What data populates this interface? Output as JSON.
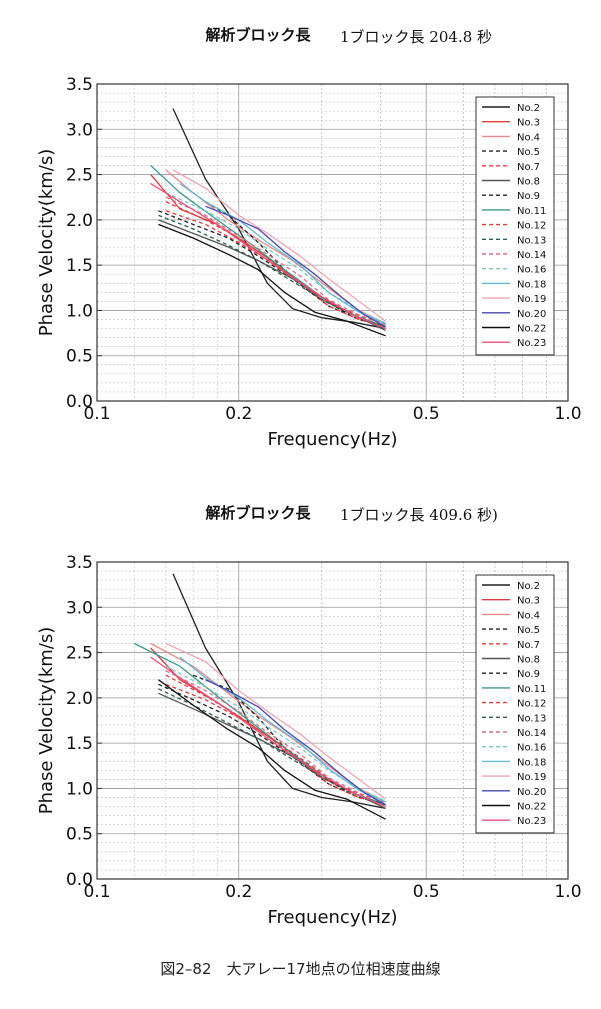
{
  "caption": "図2–82　大アレー17地点の位相速度曲線",
  "chart_data": [
    {
      "type": "line",
      "title": "解析ブロック長",
      "subtitle": "1ブロック長 204.8 秒",
      "xlabel": "Frequency(Hz)",
      "ylabel": "Phase Velocity(km/s)",
      "xscale": "log",
      "xlim": [
        0.1,
        1.0
      ],
      "ylim": [
        0.0,
        3.5
      ],
      "xticks": [
        "0.1",
        "0.2",
        "0.5",
        "1.0"
      ],
      "yticks": [
        "0.0",
        "0.5",
        "1.0",
        "1.5",
        "2.0",
        "2.5",
        "3.0",
        "3.5"
      ],
      "grid": true,
      "legend_position": "top-right",
      "series": [
        {
          "name": "No.2",
          "color": "#222222",
          "dash": "solid",
          "x": [
            0.145,
            0.17,
            0.2,
            0.23,
            0.26,
            0.3,
            0.35,
            0.41
          ],
          "y": [
            3.23,
            2.45,
            1.9,
            1.3,
            1.02,
            0.92,
            0.87,
            0.8
          ]
        },
        {
          "name": "No.3",
          "color": "#e33b3b",
          "dash": "solid",
          "x": [
            0.13,
            0.15,
            0.18,
            0.21,
            0.25,
            0.3,
            0.36,
            0.41
          ],
          "y": [
            2.5,
            2.12,
            1.95,
            1.72,
            1.45,
            1.12,
            0.92,
            0.82
          ]
        },
        {
          "name": "No.4",
          "color": "#ee8a8a",
          "dash": "solid",
          "x": [
            0.14,
            0.16,
            0.19,
            0.22,
            0.26,
            0.31,
            0.36,
            0.41
          ],
          "y": [
            2.55,
            2.3,
            2.0,
            1.78,
            1.55,
            1.25,
            1.0,
            0.85
          ]
        },
        {
          "name": "No.5",
          "color": "#222222",
          "dash": "dashed",
          "x": [
            0.135,
            0.16,
            0.19,
            0.22,
            0.26,
            0.31,
            0.36,
            0.41
          ],
          "y": [
            2.1,
            1.95,
            1.8,
            1.6,
            1.35,
            1.05,
            0.9,
            0.82
          ]
        },
        {
          "name": "No.7",
          "color": "#e33b3b",
          "dash": "dashed",
          "x": [
            0.14,
            0.17,
            0.2,
            0.23,
            0.27,
            0.31,
            0.36,
            0.41
          ],
          "y": [
            2.2,
            2.0,
            1.8,
            1.58,
            1.3,
            1.05,
            0.9,
            0.82
          ]
        },
        {
          "name": "No.8",
          "color": "#555555",
          "dash": "solid",
          "x": [
            0.135,
            0.16,
            0.19,
            0.22,
            0.26,
            0.31,
            0.36,
            0.41
          ],
          "y": [
            2.0,
            1.85,
            1.7,
            1.55,
            1.35,
            1.1,
            0.92,
            0.78
          ]
        },
        {
          "name": "No.9",
          "color": "#222222",
          "dash": "dashed",
          "x": [
            0.17,
            0.19,
            0.22,
            0.25,
            0.29,
            0.33,
            0.37,
            0.41
          ],
          "y": [
            2.2,
            2.05,
            1.75,
            1.45,
            1.2,
            1.0,
            0.9,
            0.82
          ]
        },
        {
          "name": "No.11",
          "color": "#3a9a8c",
          "dash": "solid",
          "x": [
            0.13,
            0.15,
            0.18,
            0.21,
            0.25,
            0.3,
            0.35,
            0.41
          ],
          "y": [
            2.6,
            2.3,
            2.0,
            1.75,
            1.45,
            1.15,
            0.95,
            0.82
          ]
        },
        {
          "name": "No.12",
          "color": "#e33b3b",
          "dash": "dashed",
          "x": [
            0.14,
            0.17,
            0.2,
            0.24,
            0.28,
            0.32,
            0.37,
            0.41
          ],
          "y": [
            2.1,
            1.95,
            1.75,
            1.5,
            1.25,
            1.05,
            0.92,
            0.85
          ]
        },
        {
          "name": "No.13",
          "color": "#2e5f55",
          "dash": "dashed",
          "x": [
            0.135,
            0.16,
            0.19,
            0.22,
            0.26,
            0.31,
            0.36,
            0.41
          ],
          "y": [
            2.05,
            1.9,
            1.72,
            1.55,
            1.32,
            1.08,
            0.92,
            0.82
          ]
        },
        {
          "name": "No.14",
          "color": "#d9708a",
          "dash": "dashed",
          "x": [
            0.14,
            0.17,
            0.2,
            0.23,
            0.27,
            0.31,
            0.36,
            0.41
          ],
          "y": [
            2.25,
            2.05,
            1.82,
            1.62,
            1.38,
            1.12,
            0.95,
            0.84
          ]
        },
        {
          "name": "No.16",
          "color": "#7fc8c0",
          "dash": "dashed",
          "x": [
            0.14,
            0.17,
            0.2,
            0.23,
            0.27,
            0.31,
            0.36,
            0.41
          ],
          "y": [
            2.3,
            2.1,
            1.9,
            1.68,
            1.45,
            1.2,
            1.0,
            0.86
          ]
        },
        {
          "name": "No.18",
          "color": "#5fbcd8",
          "dash": "solid",
          "x": [
            0.15,
            0.17,
            0.2,
            0.23,
            0.27,
            0.31,
            0.36,
            0.41
          ],
          "y": [
            2.4,
            2.2,
            2.0,
            1.75,
            1.5,
            1.2,
            0.98,
            0.85
          ]
        },
        {
          "name": "No.19",
          "color": "#f2a4b5",
          "dash": "solid",
          "x": [
            0.145,
            0.17,
            0.2,
            0.23,
            0.27,
            0.31,
            0.36,
            0.41
          ],
          "y": [
            2.55,
            2.35,
            2.05,
            1.85,
            1.6,
            1.35,
            1.1,
            0.88
          ]
        },
        {
          "name": "No.20",
          "color": "#4a4ab0",
          "dash": "solid",
          "x": [
            0.17,
            0.19,
            0.22,
            0.25,
            0.29,
            0.33,
            0.37,
            0.41
          ],
          "y": [
            2.15,
            2.05,
            1.9,
            1.65,
            1.4,
            1.15,
            0.95,
            0.82
          ]
        },
        {
          "name": "No.22",
          "color": "#111111",
          "dash": "solid",
          "x": [
            0.135,
            0.16,
            0.19,
            0.22,
            0.25,
            0.29,
            0.34,
            0.41
          ],
          "y": [
            1.95,
            1.8,
            1.62,
            1.45,
            1.2,
            0.98,
            0.88,
            0.72
          ]
        },
        {
          "name": "No.23",
          "color": "#e8507a",
          "dash": "solid",
          "x": [
            0.13,
            0.15,
            0.18,
            0.21,
            0.25,
            0.3,
            0.35,
            0.41
          ],
          "y": [
            2.4,
            2.2,
            1.95,
            1.7,
            1.42,
            1.15,
            0.95,
            0.8
          ]
        }
      ]
    },
    {
      "type": "line",
      "title": "解析ブロック長",
      "subtitle": "1ブロック長 409.6 秒)",
      "xlabel": "Frequency(Hz)",
      "ylabel": "Phase Velocity(km/s)",
      "xscale": "log",
      "xlim": [
        0.1,
        1.0
      ],
      "ylim": [
        0.0,
        3.5
      ],
      "xticks": [
        "0.1",
        "0.2",
        "0.5",
        "1.0"
      ],
      "yticks": [
        "0.0",
        "0.5",
        "1.0",
        "1.5",
        "2.0",
        "2.5",
        "3.0",
        "3.5"
      ],
      "grid": true,
      "legend_position": "top-right",
      "series": [
        {
          "name": "No.2",
          "color": "#222222",
          "dash": "solid",
          "x": [
            0.145,
            0.17,
            0.2,
            0.23,
            0.26,
            0.3,
            0.35,
            0.41
          ],
          "y": [
            3.37,
            2.55,
            1.95,
            1.3,
            1.0,
            0.9,
            0.85,
            0.78
          ]
        },
        {
          "name": "No.3",
          "color": "#e33b3b",
          "dash": "solid",
          "x": [
            0.13,
            0.15,
            0.18,
            0.21,
            0.25,
            0.3,
            0.36,
            0.41
          ],
          "y": [
            2.55,
            2.2,
            1.95,
            1.72,
            1.45,
            1.12,
            0.92,
            0.82
          ]
        },
        {
          "name": "No.4",
          "color": "#ee8a8a",
          "dash": "solid",
          "x": [
            0.13,
            0.16,
            0.19,
            0.22,
            0.26,
            0.31,
            0.36,
            0.41
          ],
          "y": [
            2.6,
            2.35,
            2.05,
            1.8,
            1.55,
            1.25,
            1.0,
            0.85
          ]
        },
        {
          "name": "No.5",
          "color": "#222222",
          "dash": "dashed",
          "x": [
            0.135,
            0.16,
            0.19,
            0.22,
            0.26,
            0.31,
            0.36,
            0.41
          ],
          "y": [
            2.15,
            1.98,
            1.8,
            1.6,
            1.35,
            1.05,
            0.9,
            0.82
          ]
        },
        {
          "name": "No.7",
          "color": "#e33b3b",
          "dash": "dashed",
          "x": [
            0.14,
            0.17,
            0.2,
            0.23,
            0.27,
            0.31,
            0.36,
            0.41
          ],
          "y": [
            2.25,
            2.02,
            1.8,
            1.58,
            1.3,
            1.05,
            0.9,
            0.82
          ]
        },
        {
          "name": "No.8",
          "color": "#555555",
          "dash": "solid",
          "x": [
            0.135,
            0.16,
            0.19,
            0.22,
            0.26,
            0.31,
            0.36,
            0.41
          ],
          "y": [
            2.05,
            1.88,
            1.7,
            1.55,
            1.35,
            1.1,
            0.92,
            0.78
          ]
        },
        {
          "name": "No.9",
          "color": "#222222",
          "dash": "dashed",
          "x": [
            0.16,
            0.19,
            0.22,
            0.25,
            0.29,
            0.33,
            0.37,
            0.41
          ],
          "y": [
            2.25,
            2.1,
            1.78,
            1.45,
            1.2,
            1.0,
            0.9,
            0.82
          ]
        },
        {
          "name": "No.11",
          "color": "#3a9a8c",
          "dash": "solid",
          "x": [
            0.12,
            0.15,
            0.18,
            0.21,
            0.25,
            0.3,
            0.35,
            0.41
          ],
          "y": [
            2.6,
            2.35,
            2.02,
            1.75,
            1.45,
            1.15,
            0.95,
            0.82
          ]
        },
        {
          "name": "No.12",
          "color": "#e33b3b",
          "dash": "dashed",
          "x": [
            0.14,
            0.17,
            0.2,
            0.24,
            0.28,
            0.32,
            0.37,
            0.41
          ],
          "y": [
            2.15,
            1.98,
            1.78,
            1.52,
            1.28,
            1.05,
            0.92,
            0.85
          ]
        },
        {
          "name": "No.13",
          "color": "#2e5f55",
          "dash": "dashed",
          "x": [
            0.135,
            0.16,
            0.19,
            0.22,
            0.26,
            0.31,
            0.36,
            0.41
          ],
          "y": [
            2.1,
            1.92,
            1.72,
            1.55,
            1.32,
            1.08,
            0.92,
            0.82
          ]
        },
        {
          "name": "No.14",
          "color": "#d9708a",
          "dash": "dashed",
          "x": [
            0.14,
            0.17,
            0.2,
            0.23,
            0.27,
            0.31,
            0.36,
            0.41
          ],
          "y": [
            2.3,
            2.08,
            1.85,
            1.62,
            1.38,
            1.12,
            0.95,
            0.84
          ]
        },
        {
          "name": "No.16",
          "color": "#7fc8c0",
          "dash": "dashed",
          "x": [
            0.14,
            0.17,
            0.2,
            0.23,
            0.27,
            0.31,
            0.36,
            0.41
          ],
          "y": [
            2.35,
            2.12,
            1.9,
            1.68,
            1.45,
            1.2,
            1.0,
            0.86
          ]
        },
        {
          "name": "No.18",
          "color": "#5fbcd8",
          "dash": "solid",
          "x": [
            0.15,
            0.17,
            0.2,
            0.23,
            0.27,
            0.31,
            0.36,
            0.41
          ],
          "y": [
            2.45,
            2.22,
            2.0,
            1.75,
            1.5,
            1.22,
            0.98,
            0.85
          ]
        },
        {
          "name": "No.19",
          "color": "#f2a4b5",
          "dash": "solid",
          "x": [
            0.14,
            0.17,
            0.2,
            0.23,
            0.27,
            0.31,
            0.36,
            0.41
          ],
          "y": [
            2.6,
            2.4,
            2.08,
            1.85,
            1.6,
            1.35,
            1.1,
            0.88
          ]
        },
        {
          "name": "No.20",
          "color": "#4a4ab0",
          "dash": "solid",
          "x": [
            0.17,
            0.19,
            0.22,
            0.25,
            0.29,
            0.33,
            0.37,
            0.41
          ],
          "y": [
            2.2,
            2.08,
            1.9,
            1.65,
            1.4,
            1.15,
            0.95,
            0.82
          ]
        },
        {
          "name": "No.22",
          "color": "#111111",
          "dash": "solid",
          "x": [
            0.135,
            0.16,
            0.19,
            0.22,
            0.25,
            0.29,
            0.34,
            0.41
          ],
          "y": [
            2.2,
            1.92,
            1.65,
            1.45,
            1.2,
            0.98,
            0.88,
            0.66
          ]
        },
        {
          "name": "No.23",
          "color": "#e8507a",
          "dash": "solid",
          "x": [
            0.13,
            0.15,
            0.18,
            0.21,
            0.25,
            0.3,
            0.35,
            0.41
          ],
          "y": [
            2.45,
            2.22,
            1.95,
            1.7,
            1.42,
            1.15,
            0.95,
            0.8
          ]
        }
      ]
    }
  ]
}
